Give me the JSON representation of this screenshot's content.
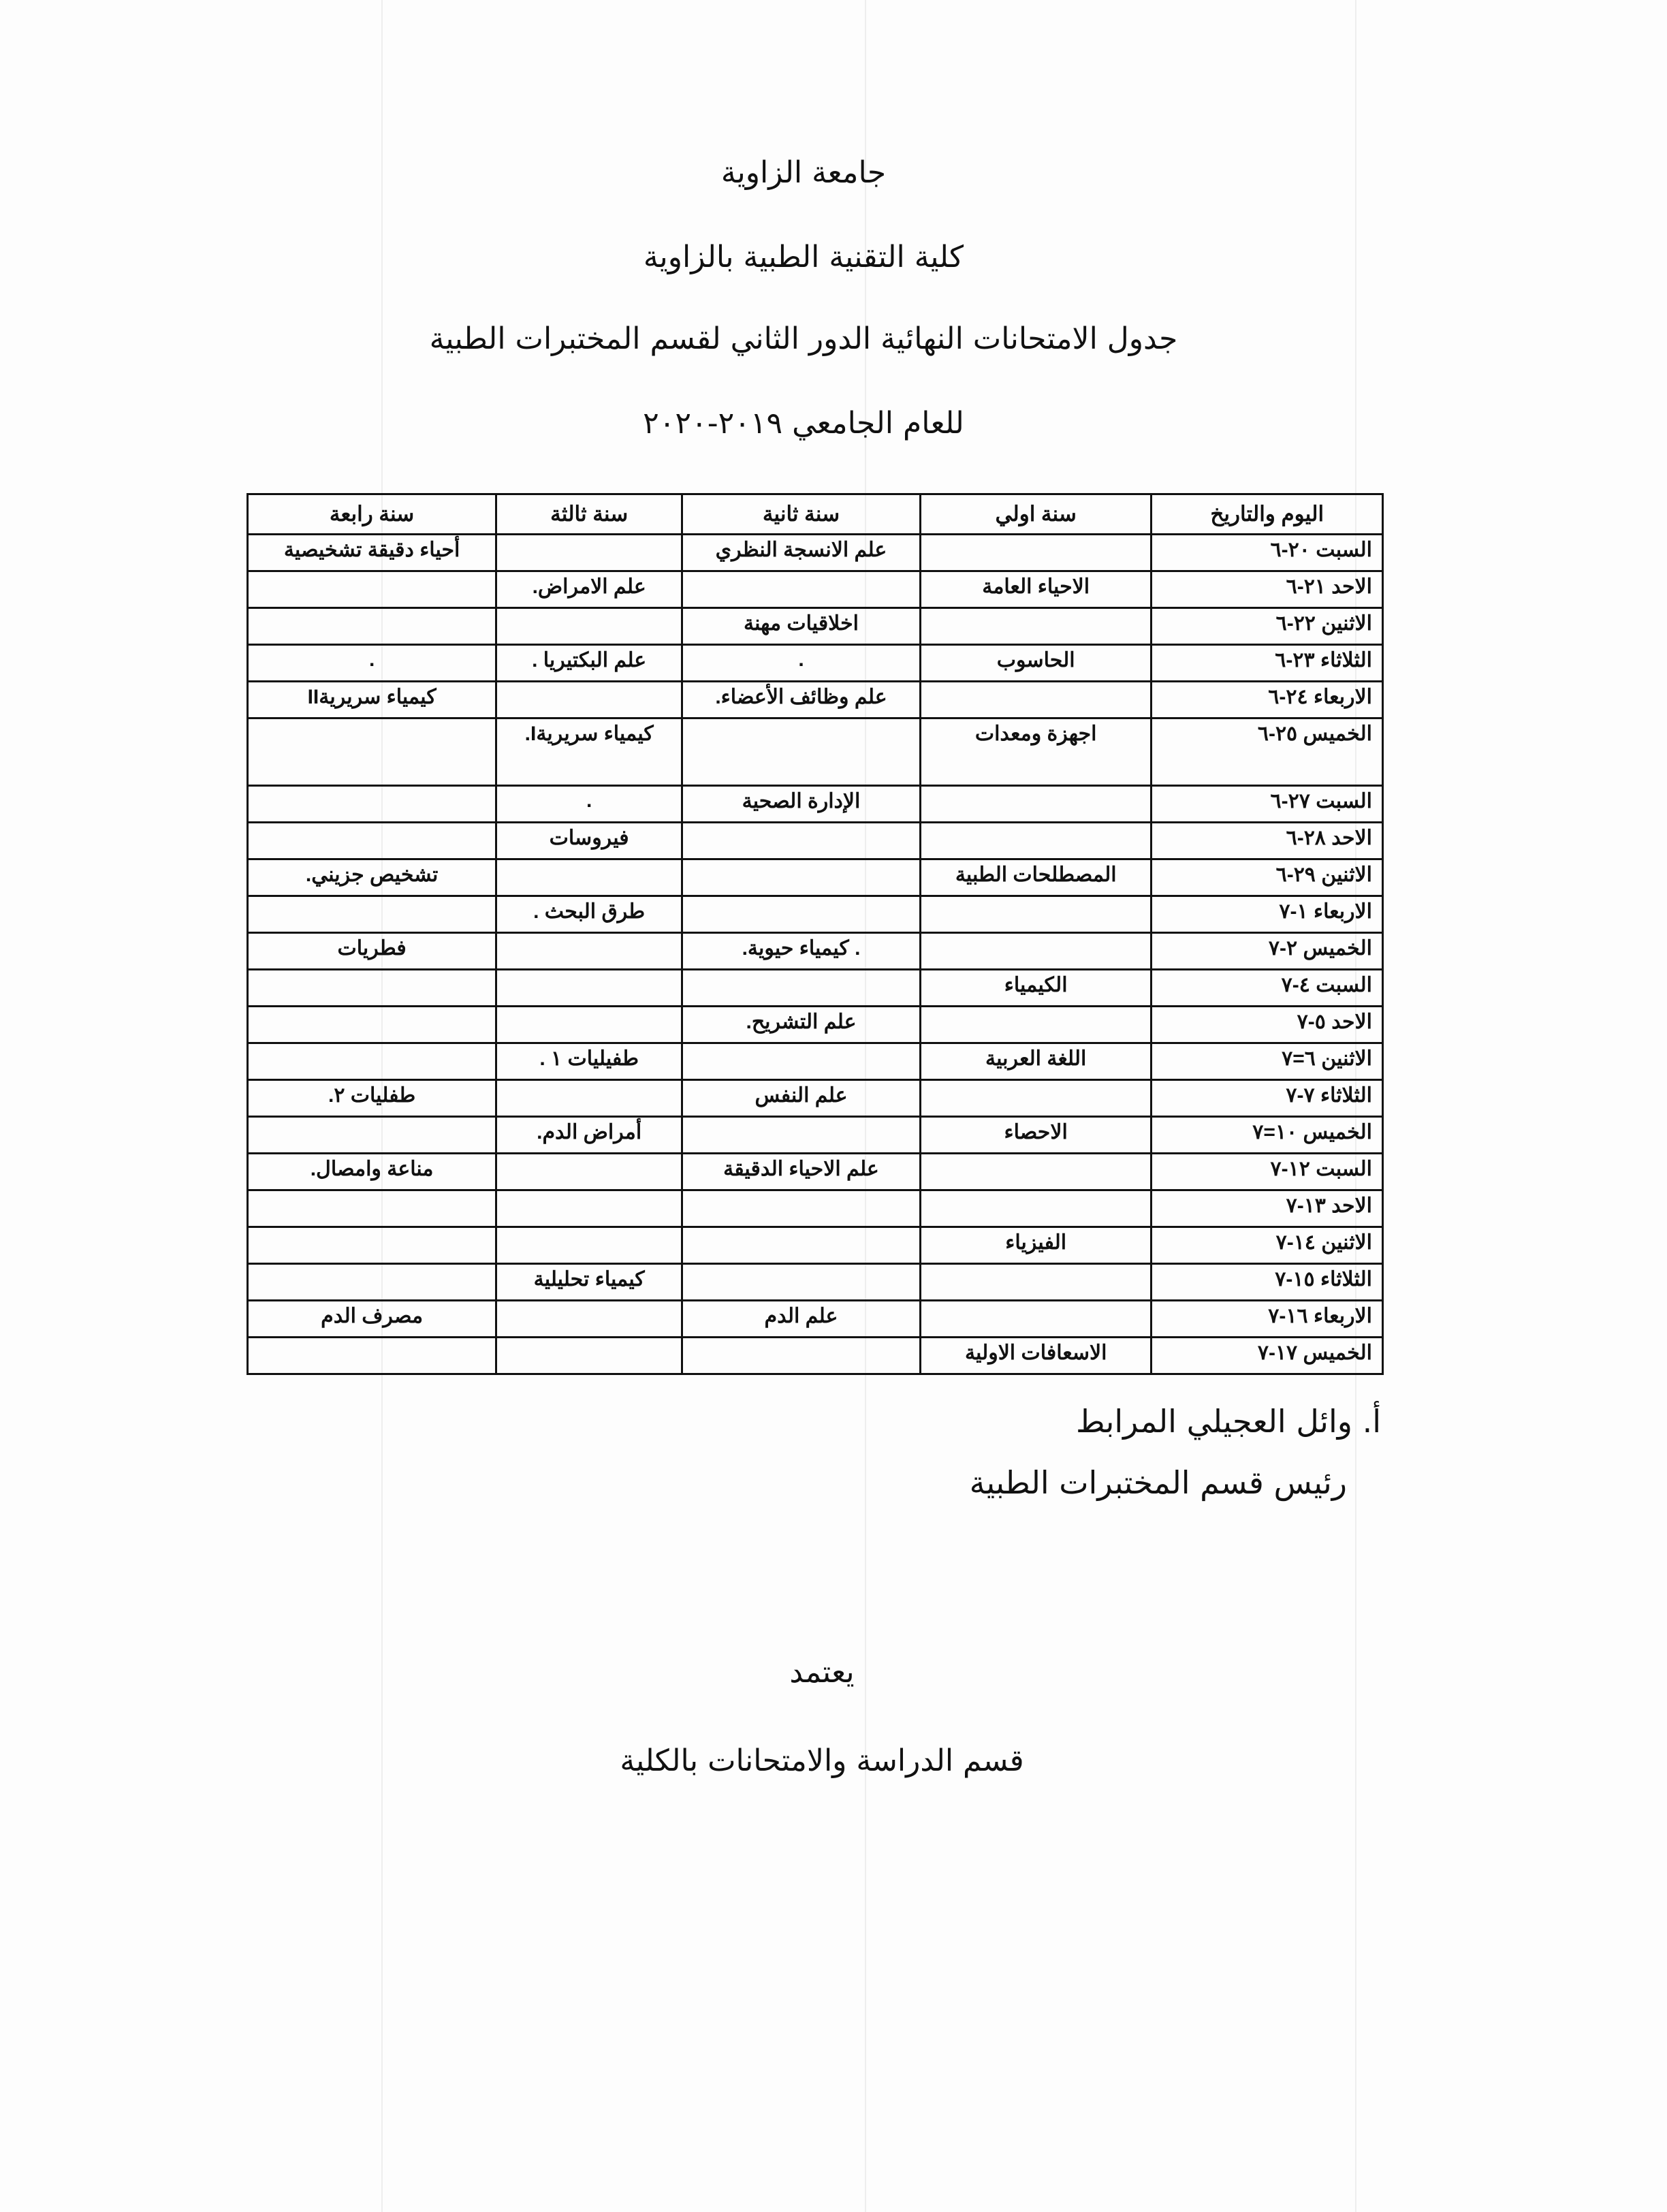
{
  "header": {
    "university": "جامعة الزاوية",
    "college": "كلية التقنية الطبية بالزاوية",
    "title": "جدول الامتحانات  النهائية الدور الثاني لقسم المختبرات الطبية",
    "year": "للعام الجامعي ٢٠١٩-٢٠٢٠"
  },
  "table": {
    "columns": [
      "اليوم والتاريخ",
      "سنة اولي",
      "سنة ثانية",
      "سنة ثالثة",
      "سنة رابعة"
    ],
    "rows": [
      [
        "السبت ٢٠-٦",
        "",
        "علم الانسجة النظري",
        "",
        "أحياء دقيقة تشخيصية"
      ],
      [
        "الاحد ٢١-٦",
        "الاحياء العامة",
        "",
        "علم الامراض.",
        ""
      ],
      [
        "الاثنين ٢٢-٦",
        "",
        "اخلاقيات مهنة",
        "",
        ""
      ],
      [
        "الثلاثاء ٢٣-٦",
        "الحاسوب",
        ".",
        "علم البكتيريا .",
        "."
      ],
      [
        "الاربعاء ٢٤-٦",
        "",
        "علم وظائف الأعضاء.",
        "",
        "كيمياء  سريريةII"
      ],
      [
        "الخميس ٢٥-٦",
        "اجهزة ومعدات",
        "",
        "كيمياء سريريةI.",
        ""
      ],
      [
        "السبت ٢٧-٦",
        "",
        "الإدارة الصحية",
        ".",
        ""
      ],
      [
        "الاحد ٢٨-٦",
        "",
        "",
        "فيروسات",
        ""
      ],
      [
        "الاثنين ٢٩-٦",
        "المصطلحات الطبية",
        "",
        "",
        "تشخيص جزيني."
      ],
      [
        "الاربعاء ١-٧",
        "",
        "",
        "طرق البحث .",
        ""
      ],
      [
        "الخميس ٢-٧",
        "",
        ". كيمياء حيوية.",
        "",
        "فطريات"
      ],
      [
        "السبت ٤-٧",
        "الكيمياء",
        "",
        "",
        ""
      ],
      [
        "الاحد ٥-٧",
        "",
        "علم التشريح.",
        "",
        ""
      ],
      [
        "الاثنين ٦=٧",
        "اللغة العربية",
        "",
        "طفيليات ١ .",
        ""
      ],
      [
        "الثلاثاء ٧-٧",
        "",
        "علم النفس",
        "",
        "طفليات ٢."
      ],
      [
        "الخميس ١٠=٧",
        "الاحصاء",
        "",
        "أمراض الدم.",
        ""
      ],
      [
        "السبت ١٢-٧",
        "",
        "علم الاحياء الدقيقة",
        "",
        "مناعة وامصال."
      ],
      [
        "الاحد ١٣-٧",
        "",
        "",
        "",
        ""
      ],
      [
        "الاثنين ١٤-٧",
        "الفيزياء",
        "",
        "",
        ""
      ],
      [
        "الثلاثاء ١٥-٧",
        "",
        "",
        "كيمياء تحليلية",
        ""
      ],
      [
        "الاربعاء ١٦-٧",
        "",
        "علم الدم",
        "",
        "مصرف الدم"
      ],
      [
        "الخميس ١٧-٧",
        "الاسعافات الاولية",
        "",
        "",
        ""
      ]
    ]
  },
  "signature": {
    "name": "أ.  وائل العجيلي المرابط",
    "role": "رئيس قسم المختبرات الطبية"
  },
  "approval": {
    "label": "يعتمد",
    "department": "قسم الدراسة والامتحانات بالكلية"
  }
}
